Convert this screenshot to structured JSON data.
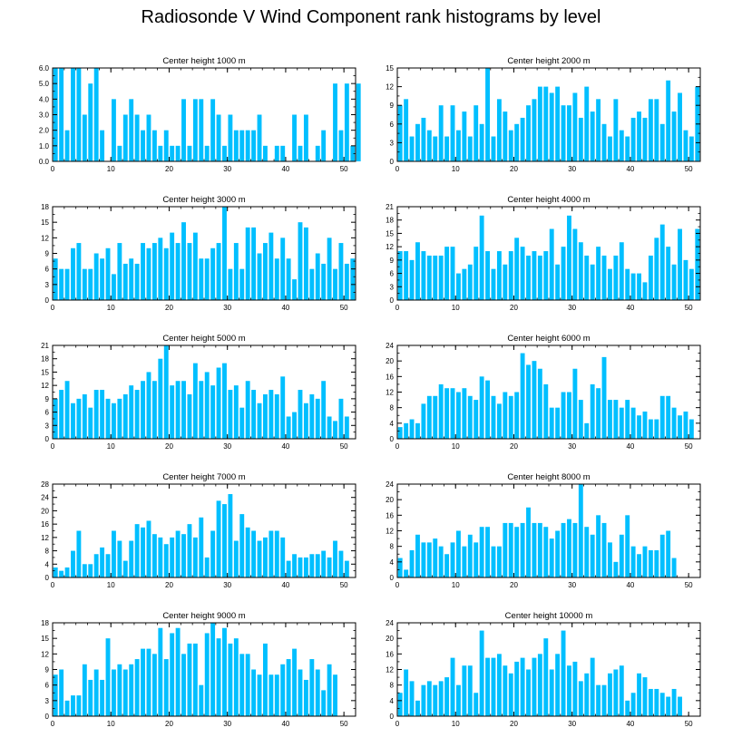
{
  "title": "Radiosonde V Wind Component rank histograms by level",
  "bar_color": "#00bfff",
  "chart_data": [
    {
      "type": "bar",
      "title": "Center height 1000 m",
      "xlim": [
        0,
        52
      ],
      "xticks": [
        0,
        10,
        20,
        30,
        40,
        50
      ],
      "ylim": [
        0,
        6
      ],
      "yticks": [
        "0.0",
        "1.0",
        "2.0",
        "3.0",
        "4.0",
        "5.0",
        "6.0"
      ],
      "values": [
        6,
        6,
        2,
        6,
        6,
        3,
        5,
        6,
        2,
        0,
        4,
        1,
        3,
        4,
        3,
        2,
        3,
        2,
        1,
        2,
        1,
        1,
        4,
        1,
        4,
        4,
        1,
        4,
        3,
        1,
        3,
        2,
        2,
        2,
        2,
        3,
        1,
        0,
        1,
        1,
        0,
        3,
        1,
        3,
        0,
        1,
        2,
        0,
        5,
        2,
        5,
        1,
        5
      ]
    },
    {
      "type": "bar",
      "title": "Center height 2000 m",
      "xlim": [
        0,
        52
      ],
      "xticks": [
        0,
        10,
        20,
        30,
        40,
        50
      ],
      "ylim": [
        0,
        15
      ],
      "yticks": [
        "0",
        "3",
        "6",
        "9",
        "12",
        "15"
      ],
      "values": [
        9,
        10,
        4,
        6,
        7,
        5,
        4,
        9,
        4,
        9,
        5,
        8,
        4,
        9,
        6,
        15,
        4,
        10,
        8,
        5,
        6,
        7,
        9,
        10,
        12,
        12,
        11,
        12,
        9,
        9,
        11,
        7,
        12,
        8,
        10,
        6,
        4,
        10,
        5,
        4,
        7,
        8,
        7,
        10,
        10,
        6,
        13,
        8,
        11,
        5,
        4,
        12
      ]
    },
    {
      "type": "bar",
      "title": "Center height 3000 m",
      "xlim": [
        0,
        52
      ],
      "xticks": [
        0,
        10,
        20,
        30,
        40,
        50
      ],
      "ylim": [
        0,
        18
      ],
      "yticks": [
        "0",
        "3",
        "6",
        "9",
        "12",
        "15",
        "18"
      ],
      "values": [
        8,
        6,
        6,
        10,
        11,
        6,
        6,
        9,
        8,
        10,
        5,
        11,
        7,
        8,
        7,
        11,
        10,
        11,
        12,
        10,
        13,
        11,
        15,
        11,
        13,
        8,
        8,
        10,
        11,
        18,
        6,
        11,
        6,
        14,
        14,
        9,
        11,
        13,
        8,
        12,
        8,
        4,
        15,
        14,
        6,
        9,
        7,
        12,
        6,
        11,
        7,
        8
      ]
    },
    {
      "type": "bar",
      "title": "Center height 4000 m",
      "xlim": [
        0,
        52
      ],
      "xticks": [
        0,
        10,
        20,
        30,
        40,
        50
      ],
      "ylim": [
        0,
        21
      ],
      "yticks": [
        "0",
        "3",
        "6",
        "9",
        "12",
        "15",
        "18",
        "21"
      ],
      "values": [
        11,
        11,
        9,
        13,
        11,
        10,
        10,
        10,
        12,
        12,
        6,
        7,
        8,
        12,
        19,
        11,
        7,
        11,
        8,
        11,
        14,
        12,
        10,
        11,
        10,
        11,
        16,
        8,
        12,
        19,
        16,
        13,
        10,
        8,
        12,
        10,
        7,
        10,
        13,
        7,
        6,
        6,
        4,
        10,
        14,
        17,
        12,
        8,
        16,
        9,
        7,
        16
      ]
    },
    {
      "type": "bar",
      "title": "Center height 5000 m",
      "xlim": [
        0,
        52
      ],
      "xticks": [
        0,
        10,
        20,
        30,
        40,
        50
      ],
      "ylim": [
        0,
        21
      ],
      "yticks": [
        "0",
        "3",
        "6",
        "9",
        "12",
        "15",
        "18",
        "21"
      ],
      "values": [
        9,
        11,
        13,
        8,
        9,
        10,
        7,
        11,
        11,
        9,
        8,
        9,
        10,
        12,
        11,
        13,
        15,
        13,
        18,
        21,
        12,
        13,
        13,
        10,
        17,
        13,
        15,
        12,
        16,
        17,
        11,
        12,
        7,
        13,
        11,
        8,
        10,
        11,
        10,
        14,
        5,
        6,
        11,
        8,
        10,
        9,
        13,
        5,
        4,
        9,
        5
      ]
    },
    {
      "type": "bar",
      "title": "Center height 6000 m",
      "xlim": [
        0,
        52
      ],
      "xticks": [
        0,
        10,
        20,
        30,
        40,
        50
      ],
      "ylim": [
        0,
        24
      ],
      "yticks": [
        "0",
        "4",
        "8",
        "12",
        "16",
        "20",
        "24"
      ],
      "values": [
        3,
        4,
        5,
        4,
        9,
        11,
        11,
        14,
        13,
        13,
        12,
        13,
        11,
        10,
        16,
        15,
        11,
        9,
        12,
        11,
        12,
        22,
        19,
        20,
        18,
        14,
        8,
        8,
        12,
        12,
        18,
        10,
        4,
        14,
        13,
        21,
        10,
        10,
        8,
        10,
        8,
        6,
        7,
        5,
        5,
        11,
        11,
        8,
        6,
        7,
        5
      ]
    },
    {
      "type": "bar",
      "title": "Center height 7000 m",
      "xlim": [
        0,
        52
      ],
      "xticks": [
        0,
        10,
        20,
        30,
        40,
        50
      ],
      "ylim": [
        0,
        28
      ],
      "yticks": [
        "0",
        "4",
        "8",
        "12",
        "16",
        "20",
        "24",
        "28"
      ],
      "values": [
        3,
        2,
        3,
        8,
        14,
        4,
        4,
        7,
        9,
        7,
        14,
        11,
        5,
        11,
        16,
        15,
        17,
        13,
        12,
        10,
        12,
        14,
        13,
        16,
        12,
        18,
        6,
        14,
        23,
        22,
        25,
        11,
        19,
        15,
        14,
        11,
        12,
        14,
        14,
        12,
        5,
        7,
        6,
        6,
        7,
        7,
        8,
        6,
        11,
        8,
        5
      ]
    },
    {
      "type": "bar",
      "title": "Center height 8000 m",
      "xlim": [
        0,
        52
      ],
      "xticks": [
        0,
        10,
        20,
        30,
        40,
        50
      ],
      "ylim": [
        0,
        24
      ],
      "yticks": [
        "0",
        "4",
        "8",
        "12",
        "16",
        "20",
        "24"
      ],
      "values": [
        5,
        2,
        7,
        11,
        9,
        9,
        10,
        8,
        6,
        9,
        12,
        8,
        11,
        9,
        13,
        13,
        8,
        8,
        14,
        14,
        13,
        14,
        18,
        14,
        14,
        13,
        10,
        12,
        14,
        15,
        14,
        24,
        13,
        11,
        16,
        14,
        9,
        4,
        11,
        16,
        8,
        6,
        8,
        7,
        7,
        11,
        12,
        5
      ]
    },
    {
      "type": "bar",
      "title": "Center height 9000 m",
      "xlim": [
        0,
        52
      ],
      "xticks": [
        0,
        10,
        20,
        30,
        40,
        50
      ],
      "ylim": [
        0,
        18
      ],
      "yticks": [
        "0",
        "3",
        "6",
        "9",
        "12",
        "15",
        "18"
      ],
      "values": [
        8,
        9,
        3,
        4,
        4,
        10,
        7,
        9,
        7,
        15,
        9,
        10,
        9,
        10,
        11,
        13,
        13,
        12,
        17,
        11,
        16,
        17,
        12,
        14,
        14,
        6,
        16,
        18,
        15,
        17,
        14,
        15,
        12,
        12,
        9,
        8,
        14,
        8,
        8,
        10,
        11,
        13,
        9,
        7,
        11,
        9,
        5,
        10,
        8
      ]
    },
    {
      "type": "bar",
      "title": "Center height 10000 m",
      "xlim": [
        0,
        52
      ],
      "xticks": [
        0,
        10,
        20,
        30,
        40,
        50
      ],
      "ylim": [
        0,
        24
      ],
      "yticks": [
        "0",
        "4",
        "8",
        "12",
        "16",
        "20",
        "24"
      ],
      "values": [
        6,
        12,
        9,
        4,
        8,
        9,
        8,
        9,
        10,
        15,
        8,
        13,
        13,
        6,
        22,
        15,
        15,
        16,
        13,
        11,
        14,
        15,
        12,
        15,
        16,
        20,
        12,
        16,
        22,
        13,
        14,
        9,
        11,
        15,
        8,
        8,
        11,
        12,
        13,
        4,
        6,
        11,
        10,
        7,
        7,
        6,
        5,
        7,
        5
      ]
    }
  ]
}
